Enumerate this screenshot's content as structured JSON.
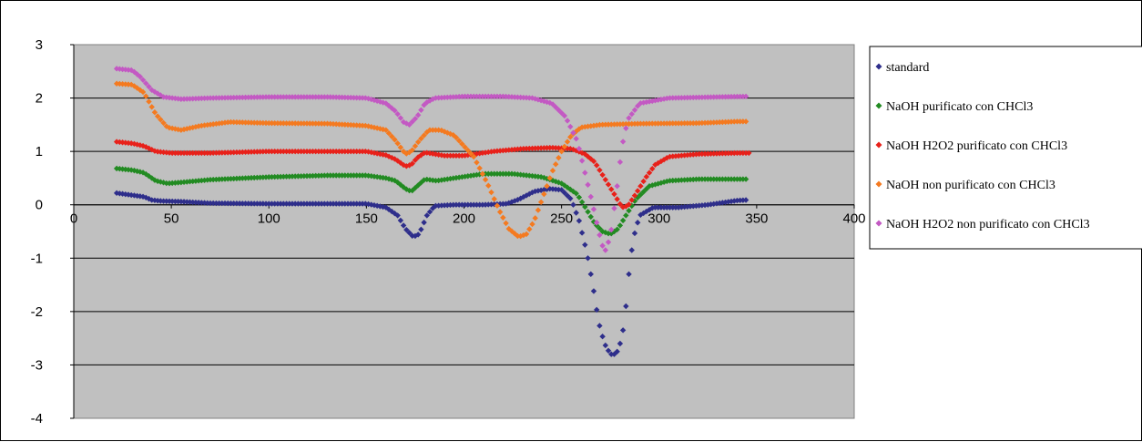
{
  "chart_data": {
    "type": "scatter",
    "title": "",
    "xlabel": "",
    "ylabel": "",
    "xlim": [
      0,
      400
    ],
    "ylim": [
      -4,
      3
    ],
    "x_ticks": [
      "0",
      "50",
      "100",
      "150",
      "200",
      "250",
      "300",
      "350",
      "400"
    ],
    "y_ticks": [
      "3",
      "2",
      "1",
      "0",
      "-1",
      "-2",
      "-3",
      "-4"
    ],
    "grid": "horizontal",
    "plot_background": "#C0C0C0",
    "legend_position": "right",
    "series": [
      {
        "name": "standard",
        "color": "#2E2E8B",
        "points": [
          [
            22,
            0.22
          ],
          [
            30,
            0.18
          ],
          [
            36,
            0.15
          ],
          [
            40,
            0.09
          ],
          [
            45,
            0.07
          ],
          [
            55,
            0.06
          ],
          [
            70,
            0.03
          ],
          [
            100,
            0.02
          ],
          [
            130,
            0.02
          ],
          [
            150,
            0.02
          ],
          [
            160,
            -0.05
          ],
          [
            166,
            -0.2
          ],
          [
            170,
            -0.45
          ],
          [
            174,
            -0.6
          ],
          [
            177,
            -0.55
          ],
          [
            181,
            -0.2
          ],
          [
            185,
            -0.02
          ],
          [
            195,
            0.0
          ],
          [
            210,
            0.0
          ],
          [
            222,
            0.02
          ],
          [
            228,
            0.1
          ],
          [
            236,
            0.25
          ],
          [
            244,
            0.3
          ],
          [
            250,
            0.28
          ],
          [
            255,
            0.1
          ],
          [
            259,
            -0.3
          ],
          [
            263,
            -0.9
          ],
          [
            266,
            -1.5
          ],
          [
            269,
            -2.2
          ],
          [
            272,
            -2.6
          ],
          [
            275,
            -2.8
          ],
          [
            278,
            -2.8
          ],
          [
            281,
            -2.5
          ],
          [
            283,
            -1.9
          ],
          [
            285,
            -1.1
          ],
          [
            287,
            -0.6
          ],
          [
            290,
            -0.2
          ],
          [
            297,
            -0.05
          ],
          [
            310,
            -0.05
          ],
          [
            325,
            0.0
          ],
          [
            340,
            0.08
          ],
          [
            345,
            0.09
          ]
        ]
      },
      {
        "name": "NaOH purificato con CHCl3",
        "color": "#228B22",
        "points": [
          [
            22,
            0.68
          ],
          [
            30,
            0.65
          ],
          [
            36,
            0.6
          ],
          [
            42,
            0.45
          ],
          [
            48,
            0.4
          ],
          [
            55,
            0.42
          ],
          [
            70,
            0.47
          ],
          [
            100,
            0.52
          ],
          [
            130,
            0.55
          ],
          [
            150,
            0.55
          ],
          [
            160,
            0.5
          ],
          [
            165,
            0.45
          ],
          [
            170,
            0.3
          ],
          [
            173,
            0.25
          ],
          [
            176,
            0.35
          ],
          [
            180,
            0.48
          ],
          [
            186,
            0.45
          ],
          [
            195,
            0.5
          ],
          [
            210,
            0.58
          ],
          [
            225,
            0.58
          ],
          [
            240,
            0.52
          ],
          [
            250,
            0.4
          ],
          [
            258,
            0.2
          ],
          [
            263,
            -0.1
          ],
          [
            267,
            -0.35
          ],
          [
            271,
            -0.5
          ],
          [
            275,
            -0.55
          ],
          [
            279,
            -0.45
          ],
          [
            283,
            -0.2
          ],
          [
            288,
            0.1
          ],
          [
            295,
            0.35
          ],
          [
            305,
            0.45
          ],
          [
            320,
            0.48
          ],
          [
            340,
            0.48
          ],
          [
            345,
            0.48
          ]
        ]
      },
      {
        "name": "NaOH H2O2 purificato con CHCl3",
        "color": "#E8211A",
        "points": [
          [
            22,
            1.18
          ],
          [
            30,
            1.15
          ],
          [
            36,
            1.1
          ],
          [
            42,
            1.0
          ],
          [
            50,
            0.97
          ],
          [
            70,
            0.97
          ],
          [
            100,
            1.0
          ],
          [
            130,
            1.0
          ],
          [
            150,
            1.0
          ],
          [
            160,
            0.93
          ],
          [
            165,
            0.85
          ],
          [
            170,
            0.72
          ],
          [
            173,
            0.75
          ],
          [
            176,
            0.88
          ],
          [
            180,
            0.98
          ],
          [
            190,
            0.92
          ],
          [
            200,
            0.92
          ],
          [
            215,
            1.0
          ],
          [
            230,
            1.05
          ],
          [
            245,
            1.07
          ],
          [
            255,
            1.05
          ],
          [
            262,
            0.95
          ],
          [
            267,
            0.8
          ],
          [
            272,
            0.5
          ],
          [
            277,
            0.2
          ],
          [
            281,
            -0.05
          ],
          [
            284,
            -0.02
          ],
          [
            288,
            0.2
          ],
          [
            293,
            0.5
          ],
          [
            298,
            0.75
          ],
          [
            305,
            0.9
          ],
          [
            320,
            0.95
          ],
          [
            340,
            0.97
          ],
          [
            347,
            0.97
          ]
        ]
      },
      {
        "name": "NaOH non purificato con CHCl3",
        "color": "#F47A20",
        "points": [
          [
            22,
            2.27
          ],
          [
            30,
            2.25
          ],
          [
            36,
            2.1
          ],
          [
            42,
            1.7
          ],
          [
            48,
            1.45
          ],
          [
            55,
            1.4
          ],
          [
            65,
            1.48
          ],
          [
            80,
            1.55
          ],
          [
            100,
            1.53
          ],
          [
            130,
            1.52
          ],
          [
            150,
            1.48
          ],
          [
            160,
            1.4
          ],
          [
            165,
            1.2
          ],
          [
            170,
            0.95
          ],
          [
            173,
            1.0
          ],
          [
            177,
            1.2
          ],
          [
            182,
            1.4
          ],
          [
            188,
            1.4
          ],
          [
            195,
            1.3
          ],
          [
            205,
            0.9
          ],
          [
            212,
            0.4
          ],
          [
            218,
            -0.1
          ],
          [
            223,
            -0.45
          ],
          [
            228,
            -0.6
          ],
          [
            232,
            -0.55
          ],
          [
            236,
            -0.3
          ],
          [
            241,
            0.2
          ],
          [
            245,
            0.6
          ],
          [
            250,
            1.0
          ],
          [
            255,
            1.3
          ],
          [
            260,
            1.45
          ],
          [
            270,
            1.5
          ],
          [
            290,
            1.52
          ],
          [
            320,
            1.53
          ],
          [
            340,
            1.56
          ],
          [
            345,
            1.56
          ]
        ]
      },
      {
        "name": "NaOH H2O2 non purificato con CHCl3",
        "color": "#C359C3",
        "points": [
          [
            22,
            2.55
          ],
          [
            30,
            2.52
          ],
          [
            34,
            2.4
          ],
          [
            40,
            2.15
          ],
          [
            46,
            2.02
          ],
          [
            55,
            1.98
          ],
          [
            70,
            2.0
          ],
          [
            100,
            2.02
          ],
          [
            130,
            2.02
          ],
          [
            150,
            2.0
          ],
          [
            160,
            1.9
          ],
          [
            165,
            1.75
          ],
          [
            169,
            1.55
          ],
          [
            172,
            1.5
          ],
          [
            176,
            1.65
          ],
          [
            180,
            1.9
          ],
          [
            185,
            2.0
          ],
          [
            200,
            2.03
          ],
          [
            220,
            2.03
          ],
          [
            235,
            2.0
          ],
          [
            245,
            1.9
          ],
          [
            252,
            1.65
          ],
          [
            258,
            1.2
          ],
          [
            262,
            0.6
          ],
          [
            266,
            0.0
          ],
          [
            269,
            -0.5
          ],
          [
            272,
            -0.9
          ],
          [
            275,
            -0.6
          ],
          [
            278,
            0.2
          ],
          [
            281,
            1.1
          ],
          [
            284,
            1.6
          ],
          [
            290,
            1.9
          ],
          [
            305,
            2.0
          ],
          [
            330,
            2.02
          ],
          [
            345,
            2.03
          ]
        ]
      }
    ]
  }
}
